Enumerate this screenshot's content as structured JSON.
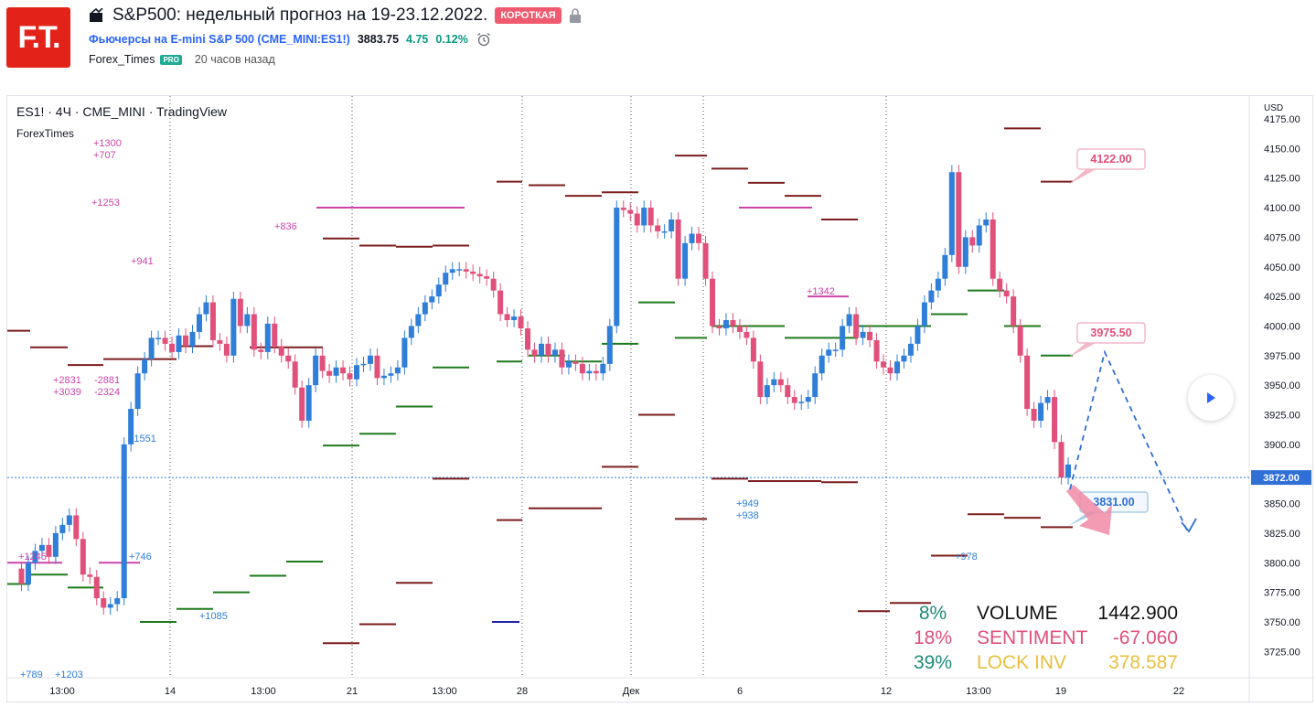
{
  "header": {
    "logo_text": "F.T.",
    "title": "S&P500: недельный прогноз на 19-23.12.2022.",
    "badge": "КОРОТКАЯ",
    "symbol_name": "Фьючерсы на E-mini S&P 500",
    "symbol_code": "CME_MINI:ES1!",
    "price": "3883.75",
    "change": "4.75",
    "change_pct": "0.12%",
    "author": "Forex_Times",
    "pro_badge": "PRO",
    "published": "20 часов назад"
  },
  "chart": {
    "title": "ES1! · 4Ч · CME_MINI · TradingView",
    "subtitle": "ForexTimes",
    "currency": "USD",
    "current_price_label": "3872.00",
    "colors": {
      "up": "#2f7ed8",
      "down": "#e0507a",
      "resistance": "#7b1d1d",
      "support": "#1e7a1e",
      "pink": "#cc44aa"
    }
  },
  "chart_data": {
    "type": "candlestick",
    "y_ticks": [
      "4175.00",
      "4150.00",
      "4125.00",
      "4100.00",
      "4075.00",
      "4050.00",
      "4025.00",
      "4000.00",
      "3975.00",
      "3950.00",
      "3925.00",
      "3900.00",
      "3875.00",
      "3850.00",
      "3825.00",
      "3800.00",
      "3775.00",
      "3750.00",
      "3725.00"
    ],
    "x_ticks": [
      "13:00",
      "14",
      "13:00",
      "21",
      "13:00",
      "28",
      "Дек",
      "6",
      "12",
      "13:00",
      "19",
      "22"
    ],
    "ylim": [
      3715,
      4180
    ],
    "annotations": {
      "targets": [
        "4122.00",
        "3975.50",
        "3831.00"
      ],
      "left_notes": [
        "+1300",
        "+707",
        "+1253",
        "+836",
        "+941",
        "+2831",
        "-2881",
        "+3039",
        "-2324",
        "+1551",
        "+1245",
        "+746",
        "+1085",
        "+789",
        "+1203"
      ],
      "mid_notes": [
        "+949",
        "+938",
        "+1342",
        "+978"
      ]
    },
    "stats": [
      {
        "pct": "8%",
        "label": "VOLUME",
        "value": "1442.900",
        "color": "#111111",
        "pct_color": "#1e8a7a"
      },
      {
        "pct": "18%",
        "label": "SENTIMENT",
        "value": "-67.060",
        "color": "#e0507a",
        "pct_color": "#e0507a"
      },
      {
        "pct": "39%",
        "label": "LOCK INV",
        "value": "378.587",
        "color": "#e8c040",
        "pct_color": "#1e8a7a"
      }
    ]
  }
}
